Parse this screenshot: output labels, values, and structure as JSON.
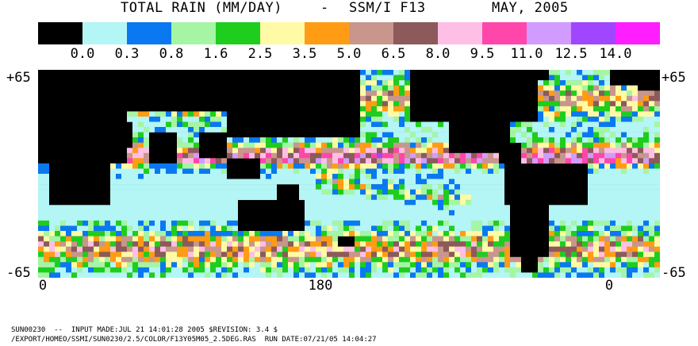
{
  "title": {
    "main": "TOTAL RAIN (MM/DAY)",
    "separator": "-",
    "instrument": "SSM/I F13",
    "date": "MAY, 2005"
  },
  "legend": {
    "colors": [
      "#000000",
      "#b4f5f5",
      "#0a78f0",
      "#a5f5a5",
      "#1ecd1e",
      "#fffaa5",
      "#ff9c14",
      "#c8968c",
      "#8c5a5a",
      "#ffbee6",
      "#ff46aa",
      "#d29bff",
      "#a046ff",
      "#ff1eff"
    ],
    "ticks": [
      "0.0",
      "0.3",
      "0.8",
      "1.6",
      "2.5",
      "3.5",
      "5.0",
      "6.5",
      "8.0",
      "9.5",
      "11.0",
      "12.5",
      "14.0"
    ]
  },
  "map": {
    "lat_top": "+65",
    "lat_bottom": "-65",
    "lon_labels": [
      "0",
      "180",
      "0"
    ]
  },
  "footer": {
    "line1": "SUN00230  --  INPUT MADE:JUL 21 14:01:28 2005 $REVISION: 3.4 $",
    "line2": "/EXPORT/HOMEO/SSMI/SUN0230/2.5/COLOR/F13Y05M05_2.5DEG.RAS  RUN DATE:07/21/05 14:04:27"
  }
}
